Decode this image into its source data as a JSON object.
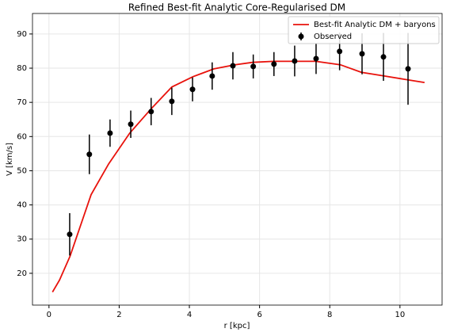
{
  "chart_data": {
    "type": "line",
    "title": "Refined Best-fit Analytic Core-Regularised DM",
    "x_label": "r [kpc]",
    "y_label": "V [km/s]",
    "xlim": [
      -0.47,
      11.2
    ],
    "ylim": [
      10.7,
      96.0
    ],
    "xticks": [
      0,
      2,
      4,
      6,
      8,
      10
    ],
    "yticks": [
      20,
      30,
      40,
      50,
      60,
      70,
      80,
      90
    ],
    "grid": true,
    "legend": "upper right",
    "series": [
      {
        "name": "Best-fit Analytic DM + baryons",
        "type": "line",
        "color": "#e8120c",
        "x": [
          0.1,
          0.3,
          0.6,
          1.2,
          1.7,
          2.3,
          2.9,
          3.5,
          4.1,
          4.7,
          5.3,
          5.8,
          6.4,
          7.0,
          7.6,
          8.3,
          8.9,
          9.5,
          10.1,
          10.7
        ],
        "values": [
          14.5,
          18,
          25,
          43,
          52,
          61,
          68,
          74.5,
          77.5,
          79.8,
          81,
          81.7,
          82,
          82,
          82,
          81,
          78.8,
          77.8,
          76.8,
          75.8
        ]
      },
      {
        "name": "Observed",
        "type": "errorbar",
        "color": "#000000",
        "x": [
          0.59,
          1.15,
          1.74,
          2.33,
          2.91,
          3.5,
          4.09,
          4.65,
          5.24,
          5.82,
          6.41,
          7.0,
          7.61,
          8.28,
          8.92,
          9.53,
          10.23
        ],
        "values": [
          31.4,
          54.8,
          61.0,
          63.6,
          67.3,
          70.3,
          73.8,
          77.7,
          80.7,
          80.5,
          81.2,
          82.1,
          82.8,
          84.9,
          84.2,
          83.3,
          79.8
        ],
        "errors": [
          6.2,
          5.8,
          4,
          4,
          4,
          4,
          3.5,
          4,
          4,
          3.5,
          3.5,
          4.5,
          4.5,
          5.5,
          6,
          7,
          10.5
        ]
      }
    ]
  }
}
